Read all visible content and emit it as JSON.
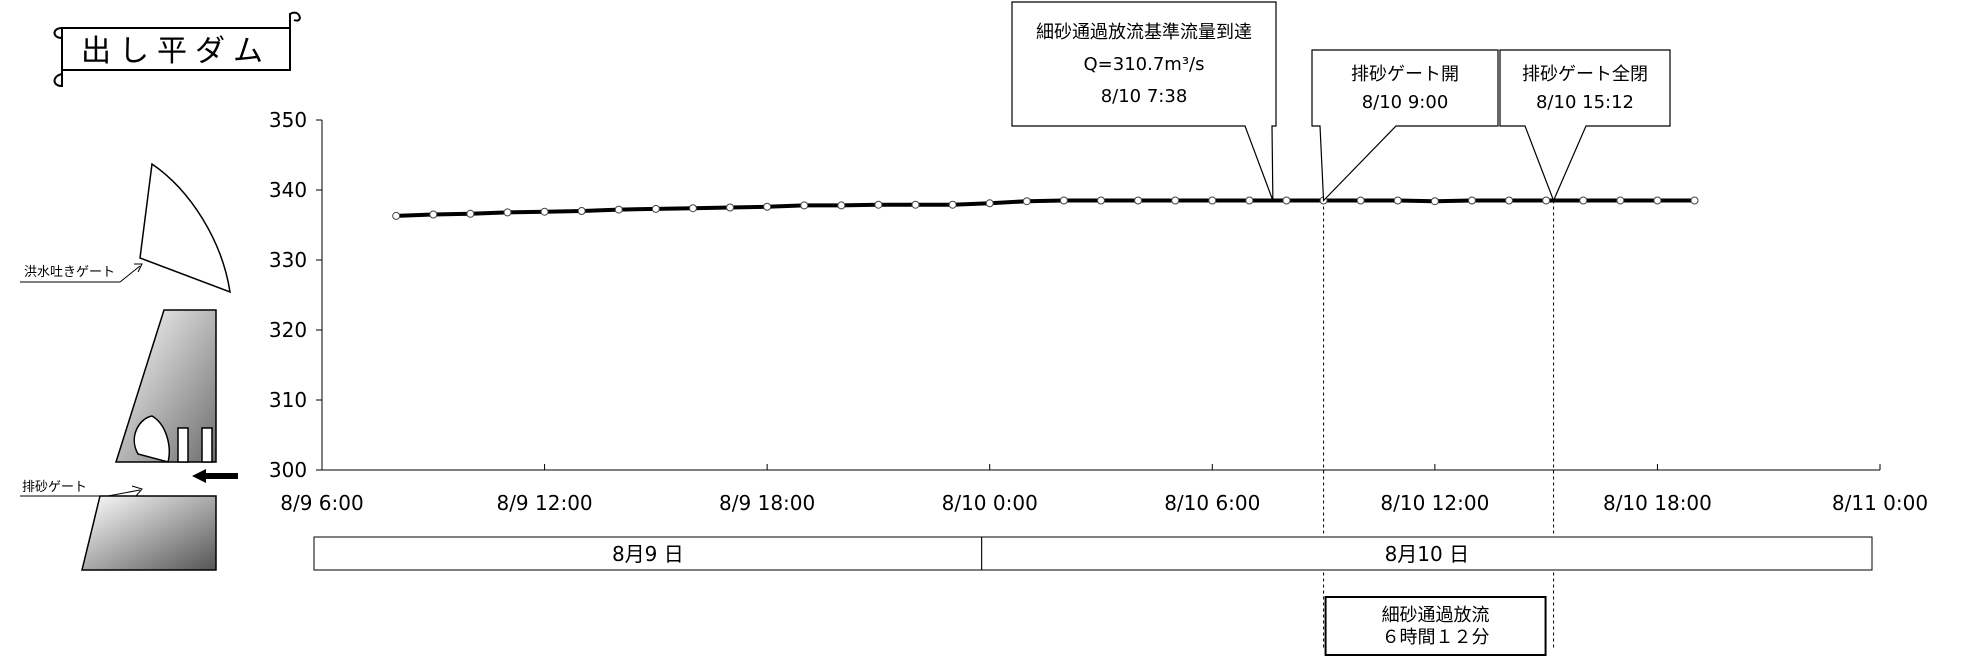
{
  "title": "出し平ダム",
  "diagram": {
    "flood_gate_label": "洪水吐きゲート",
    "sediment_gate_label": "排砂ゲート"
  },
  "chart_data": {
    "type": "line",
    "title": "",
    "xlabel": "",
    "ylabel": "",
    "ylim": [
      300,
      350
    ],
    "yticks": [
      300,
      310,
      320,
      330,
      340,
      350
    ],
    "xlim": [
      "2023-08-09T06:00",
      "2023-08-11T00:00"
    ],
    "xtick_labels": [
      "8/9 6:00",
      "8/9 12:00",
      "8/9 18:00",
      "8/10 0:00",
      "8/10 6:00",
      "8/10 12:00",
      "8/10 18:00",
      "8/11 0:00"
    ],
    "grid": false,
    "series": [
      {
        "name": "",
        "x": [
          "2023-08-09T08:00",
          "2023-08-09T09:00",
          "2023-08-09T10:00",
          "2023-08-09T11:00",
          "2023-08-09T12:00",
          "2023-08-09T13:00",
          "2023-08-09T14:00",
          "2023-08-09T15:00",
          "2023-08-09T16:00",
          "2023-08-09T17:00",
          "2023-08-09T18:00",
          "2023-08-09T19:00",
          "2023-08-09T20:00",
          "2023-08-09T21:00",
          "2023-08-09T22:00",
          "2023-08-09T23:00",
          "2023-08-10T00:00",
          "2023-08-10T01:00",
          "2023-08-10T02:00",
          "2023-08-10T03:00",
          "2023-08-10T04:00",
          "2023-08-10T05:00",
          "2023-08-10T06:00",
          "2023-08-10T07:00",
          "2023-08-10T08:00",
          "2023-08-10T09:00",
          "2023-08-10T10:00",
          "2023-08-10T11:00",
          "2023-08-10T12:00",
          "2023-08-10T13:00",
          "2023-08-10T14:00",
          "2023-08-10T15:00",
          "2023-08-10T16:00",
          "2023-08-10T17:00",
          "2023-08-10T18:00",
          "2023-08-10T19:00"
        ],
        "y": [
          336.3,
          336.5,
          336.6,
          336.8,
          336.9,
          337.0,
          337.2,
          337.3,
          337.4,
          337.5,
          337.6,
          337.8,
          337.8,
          337.9,
          337.9,
          337.9,
          338.1,
          338.4,
          338.5,
          338.5,
          338.5,
          338.5,
          338.5,
          338.5,
          338.5,
          338.5,
          338.5,
          338.5,
          338.4,
          338.5,
          338.5,
          338.5,
          338.5,
          338.5,
          338.5,
          338.5
        ]
      }
    ],
    "annotations": [
      {
        "id": "a1",
        "lines": [
          "細砂通過放流基準流量到達",
          "Q=310.7m³/s",
          "8/10 7:38"
        ],
        "x": "2023-08-10T07:38",
        "y": 338.5
      },
      {
        "id": "a2",
        "lines": [
          "排砂ゲート開",
          "8/10 9:00"
        ],
        "x": "2023-08-10T09:00",
        "y": 338.5
      },
      {
        "id": "a3",
        "lines": [
          "排砂ゲート全閉",
          "8/10  15:12"
        ],
        "x": "2023-08-10T15:12",
        "y": 338.5
      }
    ],
    "date_bands": [
      {
        "label": "8月9 日",
        "start": "2023-08-09T06:00",
        "end": "2023-08-10T00:00"
      },
      {
        "label": "8月10 日",
        "start": "2023-08-10T00:00",
        "end": "2023-08-11T00:00"
      }
    ],
    "duration_box": {
      "lines": [
        "細砂通過放流",
        "６時間１２分"
      ],
      "start": "2023-08-10T09:00",
      "end": "2023-08-10T15:12"
    }
  }
}
